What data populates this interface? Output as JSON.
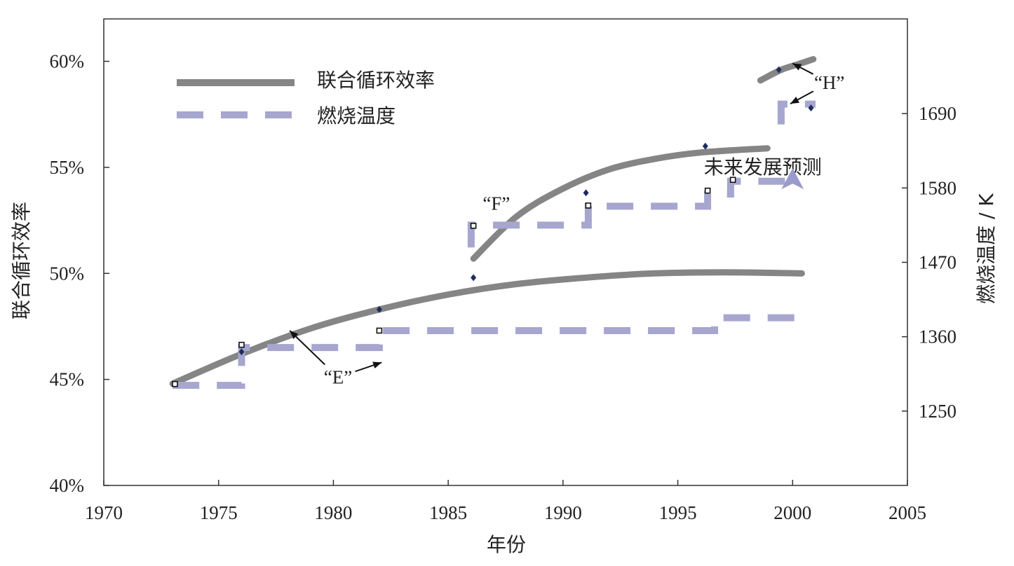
{
  "chart_data": {
    "type": "line",
    "title": "",
    "xlabel": "年份",
    "ylabel": "联合循环效率",
    "y2label": "燃烧温度 / K",
    "xlim": [
      1970,
      2005
    ],
    "ylim": [
      40,
      62
    ],
    "y2lim": [
      1140,
      1830
    ],
    "x_ticks": [
      1970,
      1975,
      1980,
      1985,
      1990,
      1995,
      2000,
      2005
    ],
    "y_ticks": [
      40,
      45,
      50,
      55,
      60
    ],
    "y_tick_labels": [
      "40%",
      "45%",
      "50%",
      "55%",
      "60%"
    ],
    "y2_ticks": [
      1250,
      1360,
      1470,
      1580,
      1690
    ],
    "legend": [
      {
        "label": "联合循环效率",
        "style": "solid",
        "color": "#858585"
      },
      {
        "label": "燃烧温度",
        "style": "dashed",
        "color": "#a6a6cf"
      }
    ],
    "series": [
      {
        "name": "联合循环效率",
        "axis": "left",
        "style": "solid",
        "segments": [
          {
            "x": [
              1973,
              1976,
              1979,
              1982,
              1985,
              1988,
              1991,
              1994,
              1997,
              2000.4
            ],
            "y": [
              44.8,
              46.2,
              47.4,
              48.3,
              49.0,
              49.5,
              49.8,
              50.0,
              50.05,
              50.0
            ]
          },
          {
            "x": [
              1986.1,
              1988,
              1990,
              1992,
              1994,
              1996,
              1998.9
            ],
            "y": [
              50.7,
              52.7,
              54.0,
              54.9,
              55.4,
              55.7,
              55.9
            ]
          },
          {
            "x": [
              1998.6,
              1999.5,
              2000.2,
              2000.9
            ],
            "y": [
              59.1,
              59.6,
              59.85,
              60.1
            ]
          }
        ],
        "markers": [
          {
            "x": 1976,
            "y": 46.3
          },
          {
            "x": 1982,
            "y": 48.3
          },
          {
            "x": 1986.1,
            "y": 49.8
          },
          {
            "x": 1991,
            "y": 53.8
          },
          {
            "x": 1996.2,
            "y": 56.0
          },
          {
            "x": 1999.4,
            "y": 59.6
          },
          {
            "x": 2000.8,
            "y": 57.8
          }
        ]
      },
      {
        "name": "燃烧温度",
        "axis": "right",
        "style": "dashed",
        "segments": [
          {
            "x": [
              1973,
              1976.0,
              1976.0,
              1982.0,
              1982.0,
              1996.6,
              1996.6,
              2000.4
            ],
            "y": [
              1288,
              1288,
              1344,
              1344,
              1369,
              1369,
              1388,
              1388
            ]
          },
          {
            "x": [
              1986.0,
              1986.0,
              1991.1,
              1991.1,
              1996.3,
              1996.3,
              1997.3,
              1997.3,
              2000.0
            ],
            "y": [
              1492,
              1525,
              1525,
              1553,
              1553,
              1571,
              1571,
              1590,
              1590
            ]
          },
          {
            "x": [
              1999.5,
              1999.5,
              2001.0
            ],
            "y": [
              1674,
              1704,
              1704
            ]
          }
        ],
        "markers": [
          {
            "x": 1973.1,
            "y": 1290
          },
          {
            "x": 1976.0,
            "y": 1348
          },
          {
            "x": 1982.0,
            "y": 1369
          },
          {
            "x": 1986.1,
            "y": 1524
          },
          {
            "x": 1991.1,
            "y": 1554
          },
          {
            "x": 1996.3,
            "y": 1576
          },
          {
            "x": 1997.4,
            "y": 1592
          }
        ]
      }
    ],
    "annotations": [
      {
        "text": "“E”",
        "x": 1980.2,
        "y": 45.1,
        "arrows": [
          {
            "to_x": 1978.1,
            "to_y": 47.3
          },
          {
            "to_x": 1982.1,
            "to_y": 45.8
          }
        ]
      },
      {
        "text": "“F”",
        "x": 1987.1,
        "y": 53.3,
        "arrows": []
      },
      {
        "text": "“H”",
        "x": 2001.6,
        "y": 59.0,
        "arrows": [
          {
            "to_x": 2000.0,
            "to_y": 59.9
          },
          {
            "to_x": 1999.9,
            "to_y": 58.0
          }
        ]
      },
      {
        "text": "未来发展预测",
        "x": 1998.7,
        "y": 55.0,
        "arrows": [],
        "triangle": {
          "x": 2000.0,
          "y": 54.3
        }
      }
    ]
  }
}
